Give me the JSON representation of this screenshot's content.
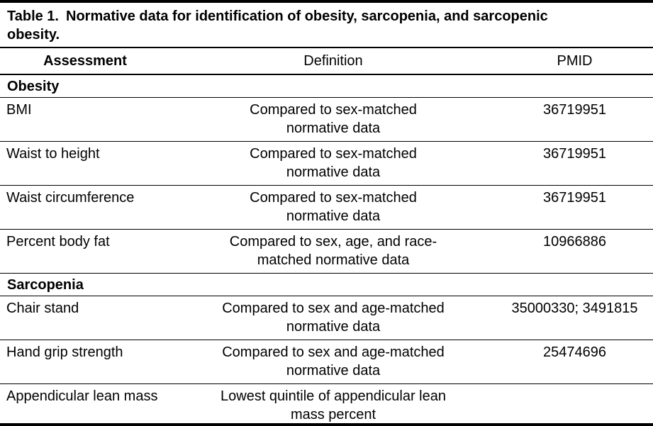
{
  "title": {
    "label": "Table 1.",
    "text": "Normative data for identification of obesity, sarcopenia, and sarcopenic obesity."
  },
  "header": {
    "columns": [
      "Assessment",
      "Definition",
      "PMID"
    ]
  },
  "sections": [
    {
      "name": "Obesity",
      "rows": [
        {
          "assessment": "BMI",
          "definition": "Compared to sex-matched normative data",
          "pmid": "36719951"
        },
        {
          "assessment": "Waist to height",
          "definition": "Compared to sex-matched normative data",
          "pmid": "36719951"
        },
        {
          "assessment": "Waist circumference",
          "definition": "Compared to sex-matched normative data",
          "pmid": "36719951"
        },
        {
          "assessment": "Percent body fat",
          "definition": "Compared to sex, age, and race-matched normative data",
          "pmid": "10966886"
        }
      ]
    },
    {
      "name": "Sarcopenia",
      "rows": [
        {
          "assessment": "Chair stand",
          "definition": "Compared to sex and age-matched normative data",
          "pmid": "35000330; 3491815"
        },
        {
          "assessment": "Hand grip strength",
          "definition": "Compared to sex and age-matched normative data",
          "pmid": "25474696"
        },
        {
          "assessment": "Appendicular lean mass",
          "definition": "Lowest quintile of appendicular lean mass percent",
          "pmid": ""
        }
      ]
    }
  ],
  "colors": {
    "border": "#000000",
    "background": "#ffffff",
    "text": "#000000"
  }
}
